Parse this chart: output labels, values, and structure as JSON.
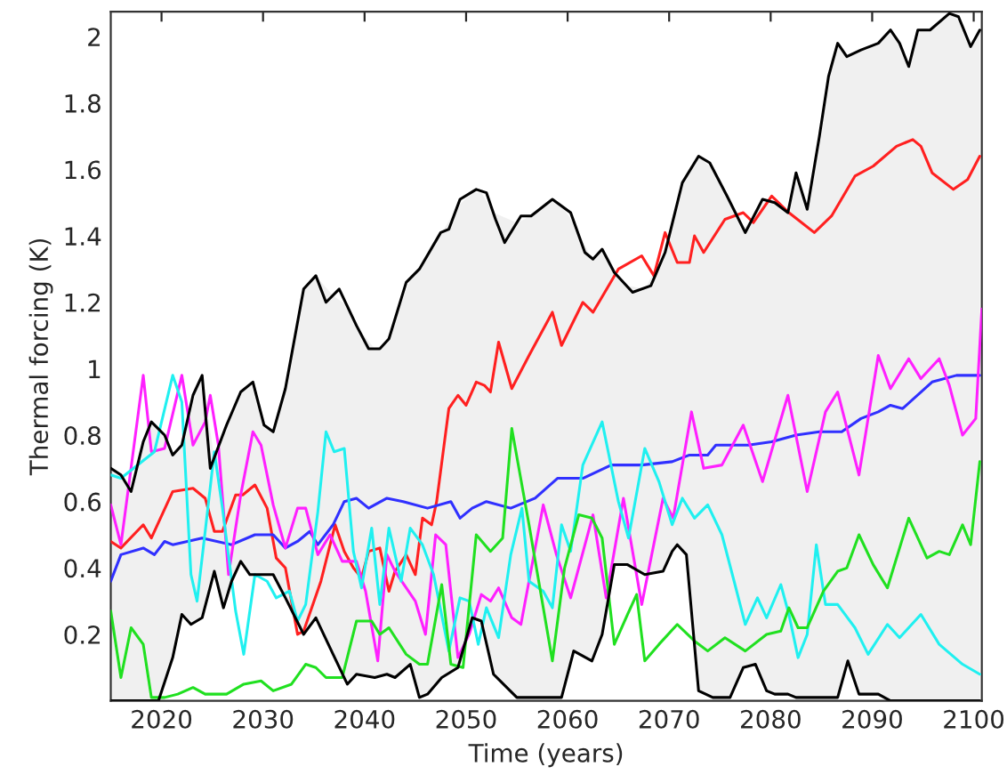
{
  "chart_data": {
    "type": "line",
    "xlabel": "Time (years)",
    "ylabel": "Thermal forcing (K)",
    "xlim": [
      2015,
      2100.8
    ],
    "ylim": [
      0,
      2.075
    ],
    "xticks": [
      2020,
      2030,
      2040,
      2050,
      2060,
      2070,
      2080,
      2090,
      2100
    ],
    "yticks": [
      0.2,
      0.4,
      0.6,
      0.8,
      1,
      1.2,
      1.4,
      1.6,
      1.8,
      2
    ],
    "grid": false,
    "legend": false,
    "series": [
      {
        "color": "#000000",
        "x": [
          2015,
          2016,
          2017,
          2018.2,
          2019,
          2020.3,
          2021.1,
          2022,
          2023.1,
          2024,
          2024.8,
          2026.4,
          2027.8,
          2029,
          2030.1,
          2031,
          2032.2,
          2034,
          2035.2,
          2036.2,
          2037.5,
          2039.2,
          2040.4,
          2041.5,
          2042.4,
          2044.1,
          2045.4,
          2047.5,
          2048.3,
          2049.4,
          2051,
          2052,
          2052.9,
          2053.8,
          2055.4,
          2056.4,
          2058.5,
          2060.3,
          2061.7,
          2062.5,
          2063.4,
          2064.6,
          2066.4,
          2068.2,
          2069.6,
          2071.3,
          2072.9,
          2074,
          2075.7,
          2077.5,
          2079.2,
          2080.4,
          2081.7,
          2082.5,
          2083.6,
          2084.8,
          2085.7,
          2086.6,
          2087.5,
          2088.9,
          2090.6,
          2091.8,
          2092.7,
          2093.6,
          2094.5,
          2095.7,
          2097.6,
          2098.5,
          2099.7,
          2100.6
        ],
        "values": [
          0.7,
          0.68,
          0.63,
          0.78,
          0.84,
          0.8,
          0.74,
          0.77,
          0.92,
          0.98,
          0.7,
          0.83,
          0.93,
          0.96,
          0.83,
          0.81,
          0.94,
          1.24,
          1.28,
          1.2,
          1.24,
          1.13,
          1.06,
          1.06,
          1.09,
          1.26,
          1.3,
          1.41,
          1.42,
          1.51,
          1.54,
          1.53,
          1.45,
          1.38,
          1.46,
          1.46,
          1.51,
          1.47,
          1.35,
          1.33,
          1.36,
          1.29,
          1.23,
          1.25,
          1.35,
          1.56,
          1.64,
          1.62,
          1.52,
          1.41,
          1.51,
          1.5,
          1.47,
          1.59,
          1.48,
          1.7,
          1.88,
          1.98,
          1.94,
          1.96,
          1.98,
          2.02,
          1.98,
          1.91,
          2.02,
          2.02,
          2.07,
          2.06,
          1.97,
          2.02
        ]
      },
      {
        "color": "#000000",
        "x": [
          2015,
          2016,
          2017,
          2018.2,
          2019,
          2019.7,
          2021.1,
          2022,
          2022.9,
          2024,
          2025.2,
          2026.1,
          2026.9,
          2027.8,
          2028.7,
          2029,
          2030.1,
          2031,
          2032.2,
          2034,
          2035.2,
          2036.9,
          2038.3,
          2039.2,
          2041,
          2042.2,
          2043,
          2044.5,
          2045.4,
          2046.2,
          2047.6,
          2049.2,
          2050.6,
          2051.5,
          2052.7,
          2055,
          2056.4,
          2058.5,
          2059.4,
          2060.6,
          2062.4,
          2063.4,
          2064.6,
          2065.9,
          2067.6,
          2069.4,
          2070.3,
          2070.8,
          2071.7,
          2072.9,
          2074.3,
          2075.7,
          2076,
          2077.3,
          2078.5,
          2079.6,
          2080.4,
          2081.7,
          2082.5,
          2083.6,
          2084.8,
          2085.7,
          2086.6,
          2087.6,
          2088.7,
          2090.6,
          2091.8,
          2092.7,
          2093.6,
          2094.5,
          2095.7,
          2097.6,
          2098.5,
          2099.7,
          2100.6
        ],
        "values": [
          0,
          0,
          0,
          0,
          0,
          0,
          0.13,
          0.26,
          0.23,
          0.25,
          0.39,
          0.28,
          0.36,
          0.42,
          0.38,
          0.38,
          0.38,
          0.38,
          0.31,
          0.2,
          0.25,
          0.14,
          0.05,
          0.08,
          0.07,
          0.08,
          0.07,
          0.11,
          0.01,
          0.02,
          0.07,
          0.1,
          0.25,
          0.24,
          0.08,
          0.01,
          0.01,
          0.01,
          0.01,
          0.15,
          0.12,
          0.2,
          0.41,
          0.41,
          0.38,
          0.39,
          0.45,
          0.47,
          0.44,
          0.03,
          0.01,
          0.01,
          0.01,
          0.1,
          0.11,
          0.03,
          0.02,
          0.02,
          0.01,
          0.01,
          0.01,
          0.01,
          0.01,
          0.12,
          0.02,
          0.02,
          0,
          0,
          0,
          0,
          0,
          0,
          0,
          0,
          0
        ],
        "lower": [
          0,
          0,
          0,
          0,
          0,
          0,
          0.13,
          0.26,
          0.23,
          0.25,
          0.39,
          0.28,
          0.36,
          0.42,
          0.38,
          0.38,
          0.38,
          0.38,
          0.31,
          0.2,
          0.25,
          0.14,
          0.05,
          0.08,
          0.07,
          0.08,
          0.07,
          0.11,
          0.01,
          0.02,
          0.07,
          0.1,
          0.25,
          0.24,
          0.08,
          0.01,
          0.01,
          0.01,
          0.01,
          0.15,
          0.12,
          0.2,
          0.41,
          0.41,
          0.38,
          0.39,
          0.45,
          0.47,
          0.44,
          0.03,
          0.01,
          0.01,
          0.01,
          0.1,
          0.11,
          0.03,
          0.02,
          0.02,
          0.01,
          0.01,
          0.01,
          0.01,
          0.01,
          0.12,
          0.02,
          0.02,
          0,
          0,
          0,
          0,
          0,
          0,
          0,
          0,
          0
        ],
        "upper": [
          0.7,
          0.68,
          0.63,
          0.78,
          0.84,
          0.82,
          0.74,
          0.77,
          0.89,
          0.98,
          0.73,
          0.81,
          0.87,
          0.93,
          0.95,
          0.96,
          0.83,
          0.81,
          0.94,
          1.24,
          1.28,
          1.22,
          1.19,
          1.13,
          1.06,
          1.08,
          1.15,
          1.27,
          1.3,
          1.34,
          1.41,
          1.49,
          1.53,
          1.53,
          1.47,
          1.44,
          1.46,
          1.51,
          1.49,
          1.44,
          1.33,
          1.36,
          1.29,
          1.25,
          1.24,
          1.34,
          1.44,
          1.5,
          1.58,
          1.64,
          1.6,
          1.52,
          1.5,
          1.42,
          1.47,
          1.51,
          1.5,
          1.47,
          1.59,
          1.48,
          1.7,
          1.88,
          1.98,
          1.94,
          1.96,
          1.98,
          2.02,
          1.98,
          1.91,
          2.02,
          2.02,
          2.07,
          2.06,
          1.97,
          2.02
        ]
      },
      {
        "color": "#ff2020",
        "x": [
          2015,
          2016,
          2018.2,
          2019,
          2021.1,
          2023.1,
          2024.3,
          2025.2,
          2026,
          2027.3,
          2028,
          2029.2,
          2030.4,
          2031.3,
          2032.2,
          2033.4,
          2034,
          2035.7,
          2037.1,
          2038,
          2038.9,
          2039.7,
          2040.4,
          2041.5,
          2042.4,
          2043,
          2044.1,
          2045,
          2045.7,
          2046.6,
          2047.1,
          2048.3,
          2049.2,
          2050,
          2051,
          2051.8,
          2052.4,
          2053.2,
          2054.5,
          2056.2,
          2058.5,
          2059.4,
          2061.5,
          2062.5,
          2065,
          2067.3,
          2068.5,
          2069.6,
          2070.8,
          2072,
          2072.5,
          2073.4,
          2075.5,
          2077.3,
          2078.3,
          2080.1,
          2081.8,
          2084.3,
          2086,
          2088.3,
          2090.1,
          2092.4,
          2094,
          2094.8,
          2095.9,
          2098,
          2099.4,
          2100.6
        ],
        "values": [
          0.48,
          0.46,
          0.53,
          0.49,
          0.63,
          0.64,
          0.61,
          0.51,
          0.51,
          0.62,
          0.62,
          0.65,
          0.58,
          0.43,
          0.4,
          0.2,
          0.21,
          0.36,
          0.53,
          0.45,
          0.4,
          0.37,
          0.45,
          0.46,
          0.33,
          0.39,
          0.44,
          0.38,
          0.55,
          0.53,
          0.6,
          0.88,
          0.92,
          0.89,
          0.96,
          0.95,
          0.93,
          1.08,
          0.94,
          1.04,
          1.17,
          1.07,
          1.2,
          1.17,
          1.3,
          1.34,
          1.28,
          1.41,
          1.32,
          1.32,
          1.4,
          1.35,
          1.45,
          1.47,
          1.44,
          1.52,
          1.47,
          1.41,
          1.46,
          1.58,
          1.61,
          1.67,
          1.69,
          1.67,
          1.59,
          1.54,
          1.57,
          1.64
        ]
      },
      {
        "color": "#3030ff",
        "x": [
          2015,
          2016,
          2018.2,
          2019.3,
          2020.3,
          2021.1,
          2024,
          2026.9,
          2029.2,
          2031,
          2032.2,
          2033.4,
          2034.6,
          2035.4,
          2036.9,
          2038,
          2039.2,
          2040.4,
          2042.2,
          2043.8,
          2046.2,
          2048.5,
          2049.4,
          2050.6,
          2052,
          2054.4,
          2056.8,
          2059,
          2061.5,
          2064.3,
          2067.3,
          2070.3,
          2072,
          2073.8,
          2074.6,
          2077.8,
          2080.1,
          2082.5,
          2084.8,
          2087,
          2088.9,
          2090.6,
          2091.8,
          2093,
          2095.9,
          2098.3,
          2100.6
        ],
        "values": [
          0.36,
          0.44,
          0.46,
          0.44,
          0.48,
          0.47,
          0.49,
          0.47,
          0.5,
          0.5,
          0.46,
          0.48,
          0.51,
          0.47,
          0.53,
          0.6,
          0.61,
          0.58,
          0.61,
          0.6,
          0.58,
          0.6,
          0.55,
          0.58,
          0.6,
          0.58,
          0.61,
          0.67,
          0.67,
          0.71,
          0.71,
          0.72,
          0.74,
          0.74,
          0.77,
          0.77,
          0.78,
          0.8,
          0.81,
          0.81,
          0.85,
          0.87,
          0.89,
          0.88,
          0.96,
          0.98,
          0.98
        ]
      },
      {
        "color": "#ff20ff",
        "x": [
          2015,
          2016,
          2018.2,
          2019,
          2020.3,
          2022,
          2023.1,
          2024.3,
          2024.8,
          2025.6,
          2026.6,
          2027.8,
          2029,
          2029.8,
          2031,
          2032.2,
          2033.4,
          2034.2,
          2035.4,
          2036.6,
          2037.8,
          2039.2,
          2040.1,
          2041.3,
          2042.2,
          2043,
          2044.1,
          2045,
          2046,
          2047,
          2048,
          2049.2,
          2050.3,
          2051.5,
          2052.4,
          2053.2,
          2054.5,
          2055.4,
          2057.6,
          2058.9,
          2060.3,
          2062.5,
          2063.8,
          2065.5,
          2067.3,
          2069.4,
          2070.4,
          2072.2,
          2073.4,
          2075.2,
          2077.3,
          2079.2,
          2081.7,
          2083.6,
          2085.4,
          2086.6,
          2088.7,
          2090.6,
          2091.8,
          2093.6,
          2094.8,
          2096.6,
          2097.6,
          2098.9,
          2100.2,
          2100.8
        ],
        "values": [
          0.59,
          0.47,
          0.98,
          0.75,
          0.76,
          0.98,
          0.77,
          0.84,
          0.92,
          0.77,
          0.38,
          0.62,
          0.81,
          0.77,
          0.59,
          0.46,
          0.58,
          0.58,
          0.44,
          0.5,
          0.42,
          0.42,
          0.33,
          0.12,
          0.44,
          0.39,
          0.34,
          0.3,
          0.2,
          0.5,
          0.47,
          0.13,
          0.2,
          0.32,
          0.3,
          0.34,
          0.25,
          0.23,
          0.59,
          0.44,
          0.31,
          0.56,
          0.31,
          0.61,
          0.29,
          0.61,
          0.55,
          0.87,
          0.7,
          0.71,
          0.83,
          0.66,
          0.92,
          0.63,
          0.87,
          0.93,
          0.68,
          1.04,
          0.94,
          1.03,
          0.97,
          1.03,
          0.95,
          0.8,
          0.85,
          1.18
        ]
      },
      {
        "color": "#20f0f0",
        "x": [
          2015,
          2016,
          2019.3,
          2021.1,
          2022,
          2022.9,
          2023.5,
          2024.3,
          2025.2,
          2026,
          2027.3,
          2028.1,
          2029.2,
          2030.4,
          2031.3,
          2032.6,
          2033.4,
          2034.2,
          2035.4,
          2036.2,
          2037,
          2038,
          2038.9,
          2039.7,
          2040.7,
          2041.5,
          2042.4,
          2043.6,
          2044.5,
          2045.7,
          2046.8,
          2048.3,
          2049.4,
          2050.3,
          2051.2,
          2052,
          2053.2,
          2054.4,
          2055.5,
          2056.2,
          2057.6,
          2058.5,
          2059.4,
          2060.3,
          2061.5,
          2063.4,
          2065,
          2066,
          2067.6,
          2069,
          2070.3,
          2071.3,
          2072.5,
          2073.8,
          2075.2,
          2076.4,
          2077.5,
          2078.7,
          2079.6,
          2081,
          2081.8,
          2082.7,
          2083.6,
          2084.5,
          2085.4,
          2086.6,
          2088.3,
          2089.6,
          2091.5,
          2092.7,
          2094.8,
          2096.6,
          2098.9,
          2100.6
        ],
        "values": [
          0.68,
          0.67,
          0.75,
          0.98,
          0.9,
          0.38,
          0.3,
          0.51,
          0.75,
          0.58,
          0.27,
          0.14,
          0.38,
          0.36,
          0.31,
          0.33,
          0.24,
          0.29,
          0.57,
          0.81,
          0.75,
          0.76,
          0.45,
          0.34,
          0.52,
          0.29,
          0.52,
          0.36,
          0.52,
          0.47,
          0.38,
          0.15,
          0.31,
          0.3,
          0.17,
          0.28,
          0.19,
          0.44,
          0.58,
          0.36,
          0.33,
          0.28,
          0.53,
          0.45,
          0.71,
          0.84,
          0.6,
          0.49,
          0.76,
          0.66,
          0.53,
          0.61,
          0.55,
          0.59,
          0.5,
          0.36,
          0.23,
          0.31,
          0.25,
          0.35,
          0.26,
          0.13,
          0.2,
          0.47,
          0.29,
          0.29,
          0.22,
          0.14,
          0.23,
          0.19,
          0.26,
          0.17,
          0.11,
          0.08
        ]
      },
      {
        "color": "#20e020",
        "x": [
          2015,
          2016,
          2017,
          2018.2,
          2019,
          2020.3,
          2021.6,
          2023.1,
          2024.3,
          2026.4,
          2028.1,
          2029.8,
          2031,
          2032.8,
          2034.2,
          2035.2,
          2036.2,
          2037.8,
          2039.2,
          2040.7,
          2041.5,
          2042.4,
          2044.1,
          2045.4,
          2046.2,
          2047.6,
          2048.5,
          2049.7,
          2051,
          2052.4,
          2053.6,
          2054.5,
          2056.2,
          2058.5,
          2059.7,
          2061.1,
          2062.4,
          2063.4,
          2064.6,
          2065.9,
          2066.8,
          2067.6,
          2069,
          2070.8,
          2072.5,
          2073.8,
          2075.5,
          2077.5,
          2079.6,
          2081,
          2081.8,
          2082.7,
          2083.6,
          2085.2,
          2086.6,
          2087.5,
          2088.7,
          2090.1,
          2091.5,
          2093.6,
          2095.4,
          2096.6,
          2097.6,
          2098.9,
          2099.7,
          2100.6
        ],
        "values": [
          0.27,
          0.07,
          0.22,
          0.17,
          0.01,
          0.01,
          0.02,
          0.04,
          0.02,
          0.02,
          0.05,
          0.06,
          0.03,
          0.05,
          0.11,
          0.1,
          0.07,
          0.07,
          0.24,
          0.24,
          0.2,
          0.22,
          0.14,
          0.11,
          0.11,
          0.35,
          0.11,
          0.1,
          0.5,
          0.45,
          0.49,
          0.82,
          0.53,
          0.12,
          0.4,
          0.56,
          0.55,
          0.49,
          0.17,
          0.26,
          0.32,
          0.12,
          0.17,
          0.23,
          0.18,
          0.15,
          0.19,
          0.15,
          0.2,
          0.21,
          0.28,
          0.22,
          0.22,
          0.33,
          0.39,
          0.4,
          0.5,
          0.41,
          0.34,
          0.55,
          0.43,
          0.45,
          0.44,
          0.53,
          0.47,
          0.72
        ]
      }
    ]
  }
}
